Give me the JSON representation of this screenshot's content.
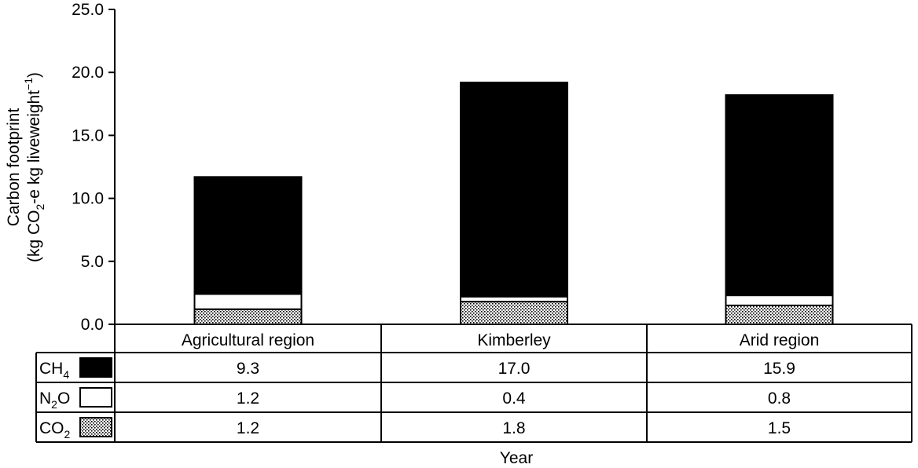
{
  "chart_data": {
    "type": "bar",
    "stacked": true,
    "categories": [
      "Agricultural region",
      "Kimberley",
      "Arid region"
    ],
    "series": [
      {
        "name": "CO",
        "sub": "2",
        "fill": "dotted",
        "values": [
          1.2,
          1.8,
          1.5
        ],
        "value_labels": [
          "1.2",
          "1.8",
          "1.5"
        ]
      },
      {
        "name": "N",
        "sub": "2",
        "name_after": "O",
        "fill": "#ffffff",
        "values": [
          1.2,
          0.4,
          0.8
        ],
        "value_labels": [
          "1.2",
          "0.4",
          "0.8"
        ]
      },
      {
        "name": "CH",
        "sub": "4",
        "fill": "#000000",
        "values": [
          9.3,
          17.0,
          15.9
        ],
        "value_labels": [
          "9.3",
          "17.0",
          "15.9"
        ]
      }
    ],
    "table_row_order": [
      2,
      1,
      0
    ],
    "ylim": [
      0,
      25
    ],
    "yticks": [
      "0.0",
      "5.0",
      "10.0",
      "15.0",
      "20.0",
      "25.0"
    ],
    "ytick_values": [
      0,
      5,
      10,
      15,
      20,
      25
    ],
    "ylabel_line1": "Carbon footprint",
    "ylabel_line2_parts": [
      "(kg CO",
      "2",
      "-e kg liveweight",
      "−1",
      ")"
    ],
    "xlabel": "Year",
    "grid": false,
    "legend": "data-table"
  }
}
